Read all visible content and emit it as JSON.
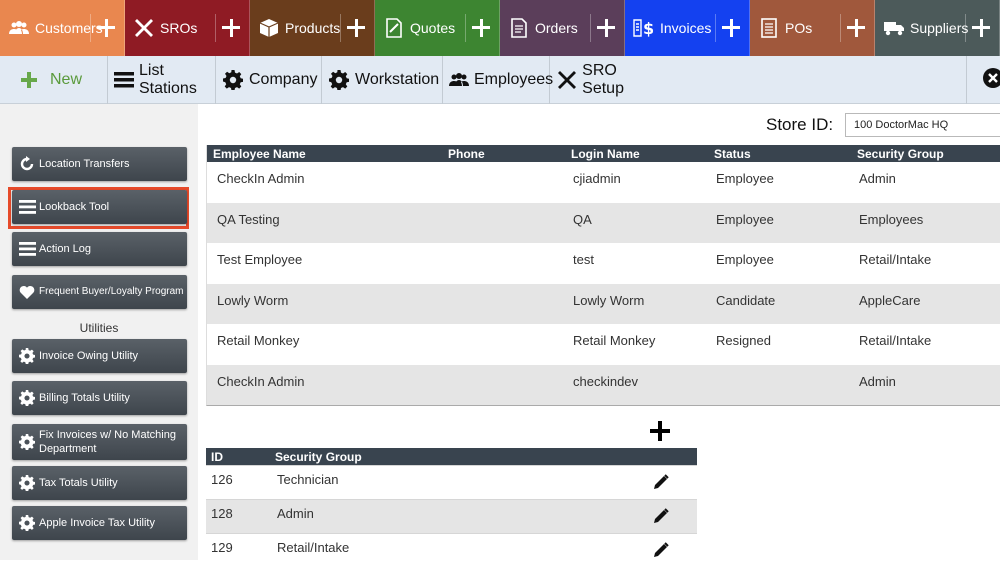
{
  "top_nav": [
    {
      "label": "Customers",
      "color": "#e9874f",
      "icon": "customers-icon"
    },
    {
      "label": "SROs",
      "color": "#8f1b24",
      "icon": "wrench-screwdriver-icon"
    },
    {
      "label": "Products",
      "color": "#6a3d1c",
      "icon": "box-icon"
    },
    {
      "label": "Quotes",
      "color": "#3d8531",
      "icon": "quote-document-icon"
    },
    {
      "label": "Orders",
      "color": "#5b3e5a",
      "icon": "order-document-icon"
    },
    {
      "label": "Invoices",
      "color": "#1441f0",
      "icon": "invoice-money-icon"
    },
    {
      "label": "POs",
      "color": "#a0583c",
      "icon": "purchase-order-icon"
    },
    {
      "label": "Suppliers",
      "color": "#4c5a5a",
      "icon": "truck-icon"
    }
  ],
  "toolbar": {
    "new_label": "New",
    "items": [
      "List Stations",
      "Company",
      "Workstation",
      "Employees",
      "SRO Setup"
    ]
  },
  "sidebar": {
    "buttons": [
      {
        "label": "Location Transfers",
        "icon": "refresh-icon"
      },
      {
        "label": "Lookback Tool",
        "icon": "list-icon"
      },
      {
        "label": "Action Log",
        "icon": "list-icon"
      },
      {
        "label": "Frequent Buyer/Loyalty Program",
        "icon": "heart-icon"
      }
    ],
    "utilities_heading": "Utilities",
    "utilities": [
      {
        "label": "Invoice Owing Utility",
        "icon": "gear-icon"
      },
      {
        "label": "Billing Totals Utility",
        "icon": "gear-icon"
      },
      {
        "label": "Fix Invoices w/ No Matching Department",
        "icon": "gear-icon"
      },
      {
        "label": "Tax Totals Utility",
        "icon": "gear-icon"
      },
      {
        "label": "Apple Invoice Tax Utility",
        "icon": "gear-icon"
      }
    ]
  },
  "store": {
    "label": "Store ID:",
    "value": "100 DoctorMac HQ"
  },
  "employees": {
    "columns": [
      "Employee Name",
      "Phone",
      "Login Name",
      "Status",
      "Security Group"
    ],
    "rows": [
      {
        "name": "CheckIn Admin",
        "phone": "",
        "login": "cjiadmin",
        "status": "Employee",
        "group": "Admin"
      },
      {
        "name": "QA Testing",
        "phone": "",
        "login": "QA",
        "status": "Employee",
        "group": "Employees"
      },
      {
        "name": "Test Employee",
        "phone": "",
        "login": "test",
        "status": "Employee",
        "group": "Retail/Intake"
      },
      {
        "name": "Lowly Worm",
        "phone": "",
        "login": "Lowly Worm",
        "status": "Candidate",
        "group": "AppleCare"
      },
      {
        "name": "Retail Monkey",
        "phone": "",
        "login": "Retail Monkey",
        "status": "Resigned",
        "group": "Retail/Intake"
      },
      {
        "name": "CheckIn Admin",
        "phone": "",
        "login": "checkindev",
        "status": "",
        "group": "Admin"
      }
    ]
  },
  "security_groups": {
    "columns": [
      "ID",
      "Security Group"
    ],
    "rows": [
      {
        "id": "126",
        "name": "Technician"
      },
      {
        "id": "128",
        "name": "Admin"
      },
      {
        "id": "129",
        "name": "Retail/Intake"
      }
    ]
  }
}
